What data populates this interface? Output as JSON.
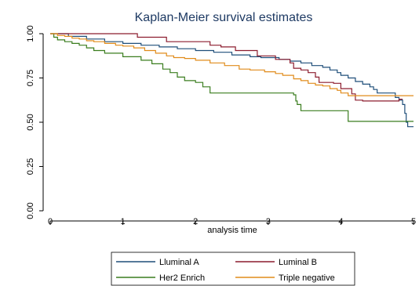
{
  "chart_data": {
    "type": "line",
    "step": true,
    "title": "Kaplan-Meier survival estimates",
    "xlabel": "analysis time",
    "ylabel": "",
    "xlim": [
      0,
      5
    ],
    "ylim": [
      0,
      1
    ],
    "x_ticks": [
      0,
      1,
      2,
      3,
      4,
      5
    ],
    "x_tick_labels": [
      "0",
      "1",
      "2",
      "3",
      "4",
      "5"
    ],
    "y_ticks": [
      0,
      0.25,
      0.5,
      0.75,
      1
    ],
    "y_tick_labels": [
      "0.00",
      "0.25",
      "0.50",
      "0.75",
      "1.00"
    ],
    "grid": false,
    "legend_position": "bottom",
    "series": [
      {
        "name": "Lluminal  A",
        "color": "#1f4e79",
        "points": [
          [
            0,
            1
          ],
          [
            0.25,
            0.985
          ],
          [
            0.5,
            0.97
          ],
          [
            0.75,
            0.955
          ],
          [
            1,
            0.945
          ],
          [
            1.25,
            0.935
          ],
          [
            1.5,
            0.925
          ],
          [
            1.75,
            0.915
          ],
          [
            2,
            0.905
          ],
          [
            2.25,
            0.895
          ],
          [
            2.5,
            0.88
          ],
          [
            2.75,
            0.87
          ],
          [
            2.9,
            0.865
          ],
          [
            3.15,
            0.855
          ],
          [
            3.3,
            0.845
          ],
          [
            3.45,
            0.835
          ],
          [
            3.6,
            0.82
          ],
          [
            3.75,
            0.81
          ],
          [
            3.85,
            0.795
          ],
          [
            3.95,
            0.78
          ],
          [
            4,
            0.765
          ],
          [
            4.1,
            0.75
          ],
          [
            4.2,
            0.73
          ],
          [
            4.3,
            0.715
          ],
          [
            4.4,
            0.7
          ],
          [
            4.45,
            0.685
          ],
          [
            4.5,
            0.665
          ],
          [
            4.75,
            0.64
          ],
          [
            4.8,
            0.625
          ],
          [
            4.85,
            0.6
          ],
          [
            4.88,
            0.55
          ],
          [
            4.9,
            0.5
          ],
          [
            4.92,
            0.475
          ],
          [
            5,
            0.475
          ]
        ]
      },
      {
        "name": "Luminal  B",
        "color": "#8c1c2e",
        "points": [
          [
            0,
            1
          ],
          [
            1.2,
            1
          ],
          [
            1.2,
            0.98
          ],
          [
            1.6,
            0.955
          ],
          [
            2.2,
            0.935
          ],
          [
            2.35,
            0.925
          ],
          [
            2.55,
            0.905
          ],
          [
            2.85,
            0.875
          ],
          [
            3.1,
            0.855
          ],
          [
            3.3,
            0.835
          ],
          [
            3.35,
            0.805
          ],
          [
            3.45,
            0.795
          ],
          [
            3.55,
            0.78
          ],
          [
            3.65,
            0.755
          ],
          [
            3.7,
            0.725
          ],
          [
            3.9,
            0.72
          ],
          [
            4,
            0.69
          ],
          [
            4.15,
            0.66
          ],
          [
            4.2,
            0.625
          ],
          [
            4.3,
            0.62
          ],
          [
            4.8,
            0.62
          ],
          [
            4.8,
            0.63
          ],
          [
            4.85,
            0.63
          ]
        ]
      },
      {
        "name": "Her2 Enrich",
        "color": "#3a7d1e",
        "points": [
          [
            0,
            1
          ],
          [
            0.05,
            0.98
          ],
          [
            0.1,
            0.965
          ],
          [
            0.2,
            0.955
          ],
          [
            0.3,
            0.945
          ],
          [
            0.4,
            0.935
          ],
          [
            0.5,
            0.92
          ],
          [
            0.6,
            0.905
          ],
          [
            0.75,
            0.89
          ],
          [
            1,
            0.87
          ],
          [
            1.25,
            0.85
          ],
          [
            1.4,
            0.83
          ],
          [
            1.55,
            0.8
          ],
          [
            1.65,
            0.78
          ],
          [
            1.75,
            0.755
          ],
          [
            1.85,
            0.735
          ],
          [
            2,
            0.725
          ],
          [
            2.1,
            0.7
          ],
          [
            2.2,
            0.665
          ],
          [
            2.35,
            0.665
          ],
          [
            3,
            0.665
          ],
          [
            3.35,
            0.655
          ],
          [
            3.38,
            0.62
          ],
          [
            3.4,
            0.6
          ],
          [
            3.45,
            0.565
          ],
          [
            3.8,
            0.565
          ],
          [
            4.05,
            0.565
          ],
          [
            4.1,
            0.505
          ],
          [
            5,
            0.505
          ]
        ]
      },
      {
        "name": "Triple negative",
        "color": "#e08b1a",
        "points": [
          [
            0,
            1
          ],
          [
            0.1,
            0.99
          ],
          [
            0.2,
            0.985
          ],
          [
            0.3,
            0.975
          ],
          [
            0.4,
            0.97
          ],
          [
            0.5,
            0.96
          ],
          [
            0.6,
            0.955
          ],
          [
            0.75,
            0.945
          ],
          [
            0.9,
            0.935
          ],
          [
            1,
            0.93
          ],
          [
            1.15,
            0.92
          ],
          [
            1.3,
            0.905
          ],
          [
            1.45,
            0.89
          ],
          [
            1.6,
            0.875
          ],
          [
            1.7,
            0.865
          ],
          [
            1.85,
            0.86
          ],
          [
            2,
            0.85
          ],
          [
            2.2,
            0.835
          ],
          [
            2.4,
            0.82
          ],
          [
            2.6,
            0.8
          ],
          [
            2.75,
            0.795
          ],
          [
            2.95,
            0.785
          ],
          [
            3.1,
            0.775
          ],
          [
            3.2,
            0.765
          ],
          [
            3.35,
            0.745
          ],
          [
            3.45,
            0.735
          ],
          [
            3.55,
            0.72
          ],
          [
            3.65,
            0.71
          ],
          [
            3.75,
            0.705
          ],
          [
            3.85,
            0.69
          ],
          [
            3.95,
            0.68
          ],
          [
            4,
            0.665
          ],
          [
            4.1,
            0.65
          ],
          [
            5,
            0.65
          ]
        ]
      }
    ]
  }
}
